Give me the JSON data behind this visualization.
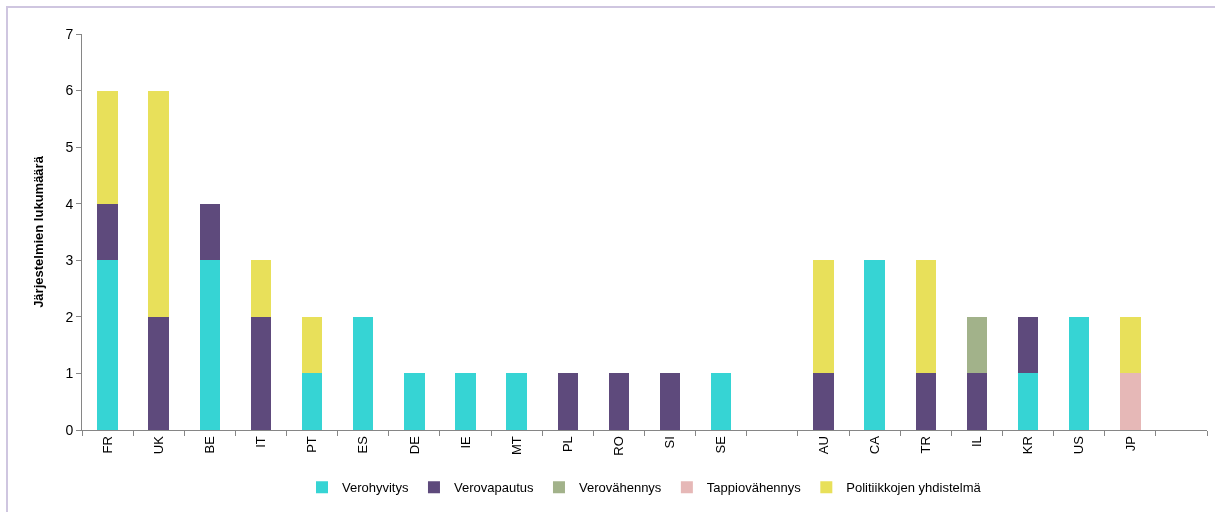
{
  "chart_data": {
    "type": "bar",
    "stacked": true,
    "ylabel": "Järjestelmien lukumäärä",
    "categories": [
      "FR",
      "UK",
      "BE",
      "IT",
      "PT",
      "ES",
      "DE",
      "IE",
      "MT",
      "PL",
      "RO",
      "SI",
      "SE",
      null,
      "AU",
      "CA",
      "TR",
      "IL",
      "KR",
      "US",
      "JP",
      null
    ],
    "series": [
      {
        "name": "Verohyvitys",
        "color": "#36d4d4",
        "values": [
          3,
          0,
          3,
          0,
          1,
          2,
          1,
          1,
          1,
          0,
          0,
          0,
          1,
          null,
          0,
          3,
          0,
          0,
          1,
          2,
          0,
          null
        ]
      },
      {
        "name": "Verovapautus",
        "color": "#5e4a7c",
        "values": [
          1,
          2,
          1,
          2,
          0,
          0,
          0,
          0,
          0,
          1,
          1,
          1,
          0,
          null,
          1,
          0,
          1,
          1,
          1,
          0,
          0,
          null
        ]
      },
      {
        "name": "Verovähennys",
        "color": "#a2b28a",
        "values": [
          0,
          0,
          0,
          0,
          0,
          0,
          0,
          0,
          0,
          0,
          0,
          0,
          0,
          null,
          0,
          0,
          0,
          1,
          0,
          0,
          0,
          null
        ]
      },
      {
        "name": "Tappiovähennys",
        "color": "#e6b8b7",
        "values": [
          0,
          0,
          0,
          0,
          0,
          0,
          0,
          0,
          0,
          0,
          0,
          0,
          0,
          null,
          0,
          0,
          0,
          0,
          0,
          0,
          1,
          null
        ]
      },
      {
        "name": "Politiikkojen yhdistelmä",
        "color": "#e8e05a",
        "values": [
          2,
          4,
          0,
          1,
          1,
          0,
          0,
          0,
          0,
          0,
          0,
          0,
          0,
          null,
          2,
          0,
          2,
          0,
          0,
          0,
          1,
          null
        ]
      }
    ],
    "ylim": [
      0,
      7
    ],
    "yticks": [
      0,
      1,
      2,
      3,
      4,
      5,
      6,
      7
    ],
    "grid": false,
    "legend": "bottom"
  }
}
